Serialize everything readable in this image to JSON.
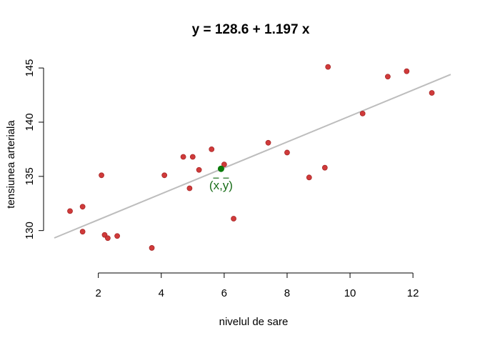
{
  "chart_data": {
    "type": "scatter",
    "title": "y =  128.6  +  1.197  x",
    "xlabel": "nivelul de sare",
    "ylabel": "tensiunea arteriala",
    "xlim": [
      0.6,
      13.2
    ],
    "ylim": [
      128.0,
      145.8
    ],
    "xticks": [
      2,
      4,
      6,
      8,
      10,
      12
    ],
    "yticks": [
      130,
      135,
      140,
      145
    ],
    "grid": false,
    "points": [
      {
        "x": 1.1,
        "y": 131.8
      },
      {
        "x": 1.5,
        "y": 132.2
      },
      {
        "x": 1.5,
        "y": 129.9
      },
      {
        "x": 2.1,
        "y": 135.1
      },
      {
        "x": 2.2,
        "y": 129.6
      },
      {
        "x": 2.3,
        "y": 129.3
      },
      {
        "x": 2.6,
        "y": 129.5
      },
      {
        "x": 3.7,
        "y": 128.4
      },
      {
        "x": 4.1,
        "y": 135.1
      },
      {
        "x": 4.7,
        "y": 136.8
      },
      {
        "x": 4.9,
        "y": 133.9
      },
      {
        "x": 5.0,
        "y": 136.8
      },
      {
        "x": 5.2,
        "y": 135.6
      },
      {
        "x": 5.6,
        "y": 137.5
      },
      {
        "x": 6.0,
        "y": 136.1
      },
      {
        "x": 6.3,
        "y": 131.1
      },
      {
        "x": 7.4,
        "y": 138.1
      },
      {
        "x": 8.0,
        "y": 137.2
      },
      {
        "x": 8.7,
        "y": 134.9
      },
      {
        "x": 9.2,
        "y": 135.8
      },
      {
        "x": 9.3,
        "y": 145.1
      },
      {
        "x": 10.4,
        "y": 140.8
      },
      {
        "x": 11.2,
        "y": 144.2
      },
      {
        "x": 11.8,
        "y": 144.7
      },
      {
        "x": 12.6,
        "y": 142.7
      }
    ],
    "regression": {
      "intercept": 128.6,
      "slope": 1.197
    },
    "centroid": {
      "x": 5.9,
      "y": 135.7,
      "label": "(x,y)"
    },
    "colors": {
      "points": "#d03a3a",
      "line": "#bdbdbd",
      "centroid": "#0a7a0a"
    }
  }
}
